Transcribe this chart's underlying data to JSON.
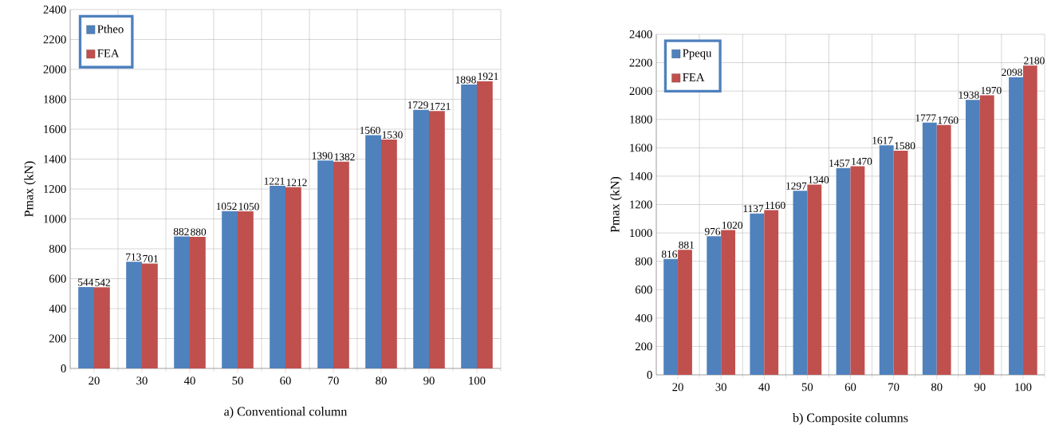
{
  "chart_data": [
    {
      "type": "bar",
      "xlabel": "a) Conventional column",
      "ylabel": "Pmax (kN)",
      "categories": [
        "20",
        "30",
        "40",
        "50",
        "60",
        "70",
        "80",
        "90",
        "100"
      ],
      "series": [
        {
          "name": "Ptheo",
          "color": "#4f81bd",
          "values": [
            544,
            713,
            882,
            1052,
            1221,
            1390,
            1560,
            1729,
            1898
          ]
        },
        {
          "name": "FEA",
          "color": "#c0504d",
          "values": [
            542,
            701,
            880,
            1050,
            1212,
            1382,
            1530,
            1721,
            1921
          ]
        }
      ],
      "ylim": [
        0,
        2400
      ],
      "yticks": [
        0,
        200,
        400,
        600,
        800,
        1000,
        1200,
        1400,
        1600,
        1800,
        2000,
        2200,
        2400
      ],
      "grid": true,
      "legend": "top left",
      "data_labels": true
    },
    {
      "type": "bar",
      "xlabel": "b) Composite columns",
      "ylabel": "Pmax (kN)",
      "categories": [
        "20",
        "30",
        "40",
        "50",
        "60",
        "70",
        "80",
        "90",
        "100"
      ],
      "series": [
        {
          "name": "Ppequ",
          "color": "#4f81bd",
          "values": [
            816,
            976,
            1137,
            1297,
            1457,
            1617,
            1777,
            1938,
            2098
          ]
        },
        {
          "name": "FEA",
          "color": "#c0504d",
          "values": [
            881,
            1020,
            1160,
            1340,
            1470,
            1580,
            1760,
            1970,
            2180
          ]
        }
      ],
      "ylim": [
        0,
        2400
      ],
      "yticks": [
        0,
        200,
        400,
        600,
        800,
        1000,
        1200,
        1400,
        1600,
        1800,
        2000,
        2200,
        2400
      ],
      "grid": true,
      "legend": "top left",
      "data_labels": true
    }
  ]
}
